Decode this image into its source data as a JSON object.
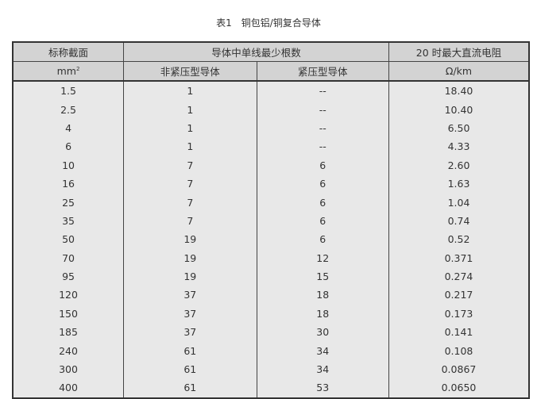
{
  "caption": "表1　铜包铝/铜复合导体",
  "header": {
    "col1_top": "标称截面",
    "col1_unit": "mm",
    "col1_unit_sup": "2",
    "group": "导体中单线最少根数",
    "sub1": "非紧压型导体",
    "sub2": "紧压型导体",
    "col4_top": "20 时最大直流电阻",
    "col4_unit": "Ω/km"
  },
  "rows": [
    [
      "1.5",
      "1",
      "--",
      "18.40"
    ],
    [
      "2.5",
      "1",
      "--",
      "10.40"
    ],
    [
      "4",
      "1",
      "--",
      "6.50"
    ],
    [
      "6",
      "1",
      "--",
      "4.33"
    ],
    [
      "10",
      "7",
      "6",
      "2.60"
    ],
    [
      "16",
      "7",
      "6",
      "1.63"
    ],
    [
      "25",
      "7",
      "6",
      "1.04"
    ],
    [
      "35",
      "7",
      "6",
      "0.74"
    ],
    [
      "50",
      "19",
      "6",
      "0.52"
    ],
    [
      "70",
      "19",
      "12",
      "0.371"
    ],
    [
      "95",
      "19",
      "15",
      "0.274"
    ],
    [
      "120",
      "37",
      "18",
      "0.217"
    ],
    [
      "150",
      "37",
      "18",
      "0.173"
    ],
    [
      "185",
      "37",
      "30",
      "0.141"
    ],
    [
      "240",
      "61",
      "34",
      "0.108"
    ],
    [
      "300",
      "61",
      "34",
      "0.0867"
    ],
    [
      "400",
      "61",
      "53",
      "0.0650"
    ]
  ]
}
